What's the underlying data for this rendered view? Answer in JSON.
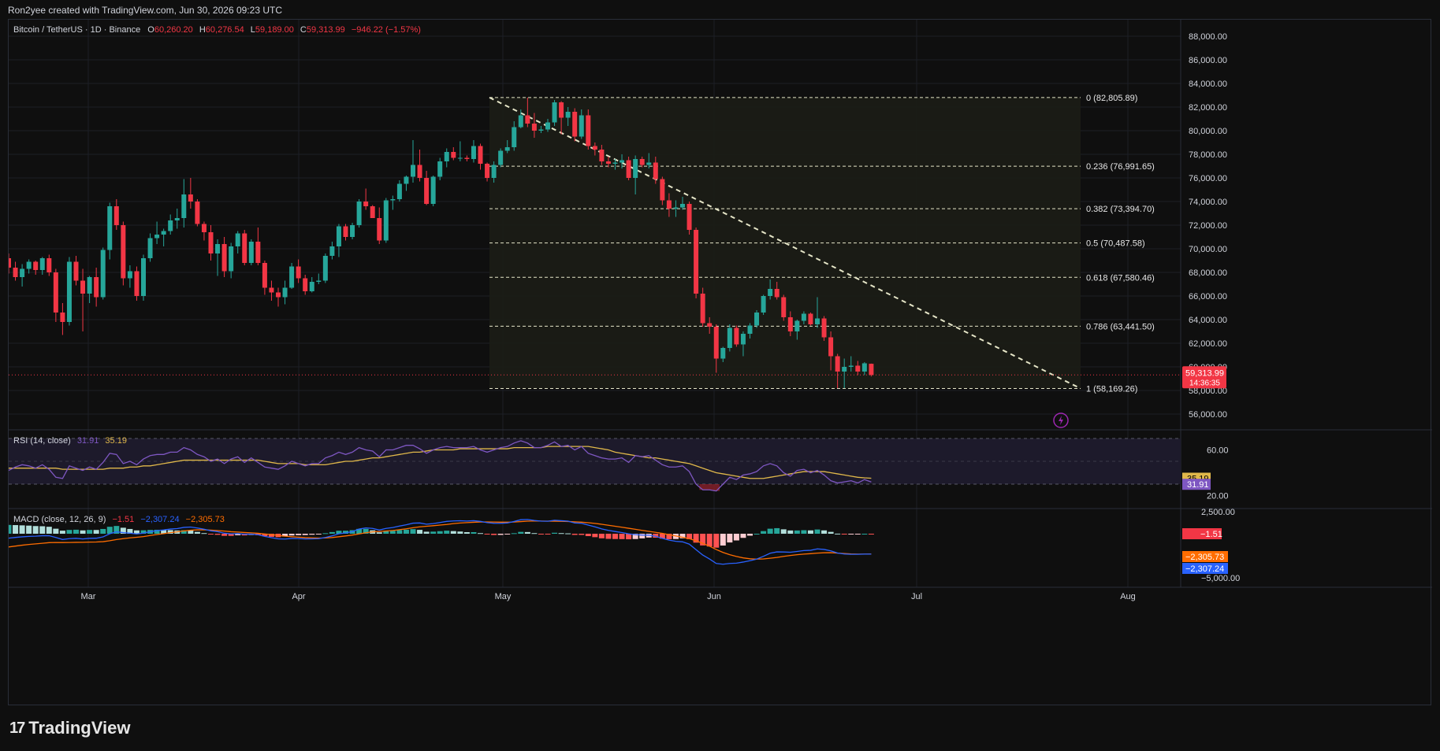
{
  "header": {
    "credit": "Ron2yee created with TradingView.com, Jun 30, 2026 09:23 UTC"
  },
  "legend": {
    "symbol": "Bitcoin / TetherUS · 1D · Binance",
    "o_label": "O",
    "o": "60,260.20",
    "h_label": "H",
    "h": "60,276.54",
    "l_label": "L",
    "l": "59,189.00",
    "c_label": "C",
    "c": "59,313.99",
    "change": "−946.22 (−1.57%)"
  },
  "price_axis": {
    "ticks": [
      "88,000.00",
      "86,000.00",
      "84,000.00",
      "82,000.00",
      "80,000.00",
      "78,000.00",
      "76,000.00",
      "74,000.00",
      "72,000.00",
      "70,000.00",
      "68,000.00",
      "66,000.00",
      "64,000.00",
      "62,000.00",
      "60,000.00",
      "58,000.00",
      "56,000.00"
    ],
    "last_price": "59,313.99",
    "countdown": "14:36:35"
  },
  "fib": {
    "levels": [
      {
        "label": "0 (82,805.89)",
        "price": 82805.89
      },
      {
        "label": "0.236 (76,991.65)",
        "price": 76991.65
      },
      {
        "label": "0.382 (73,394.70)",
        "price": 73394.7
      },
      {
        "label": "0.5 (70,487.58)",
        "price": 70487.58
      },
      {
        "label": "0.618 (67,580.46)",
        "price": 67580.46
      },
      {
        "label": "0.786 (63,441.50)",
        "price": 63441.5
      },
      {
        "label": "1 (58,169.26)",
        "price": 58169.26
      }
    ]
  },
  "rsi": {
    "title": "RSI (14, close)",
    "value": "31.91",
    "ma": "35.19",
    "ticks": [
      "60.00",
      "20.00"
    ],
    "badge_ma": "35.19",
    "badge_value": "31.91"
  },
  "macd": {
    "title": "MACD (close, 12, 26, 9)",
    "hist": "−1.51",
    "macd": "−2,307.24",
    "signal": "−2,305.73",
    "ticks": [
      "2,500.00",
      "−5,000.00"
    ],
    "badge_hist": "−1.51",
    "badge_signal": "−2,305.73",
    "badge_macd": "−2,307.24"
  },
  "time_axis": [
    "Mar",
    "Apr",
    "May",
    "Jun",
    "Jul",
    "Aug"
  ],
  "footer": {
    "brand": "TradingView"
  },
  "colors": {
    "up": "#26a69a",
    "down": "#f23645",
    "rsi": "#7e57c2",
    "rsi_ma": "#e0b84a",
    "macd": "#2962ff",
    "signal": "#ff6d00",
    "fib": "#e6e6c8"
  },
  "chart_data": {
    "type": "candlestick",
    "ylim": [
      55000,
      89000
    ],
    "candles": [
      [
        69200,
        69600,
        67900,
        68400
      ],
      [
        68400,
        68900,
        67300,
        67600
      ],
      [
        67600,
        68700,
        66800,
        68300
      ],
      [
        68300,
        69100,
        67900,
        68900
      ],
      [
        68900,
        69000,
        67800,
        68200
      ],
      [
        68200,
        69300,
        67800,
        69200
      ],
      [
        69200,
        69500,
        67700,
        68000
      ],
      [
        68000,
        68300,
        63800,
        64600
      ],
      [
        64600,
        65400,
        62700,
        63800
      ],
      [
        63800,
        69300,
        63500,
        68900
      ],
      [
        68900,
        69400,
        66900,
        67300
      ],
      [
        67300,
        68300,
        63000,
        66200
      ],
      [
        66200,
        67700,
        65400,
        67600
      ],
      [
        67600,
        68400,
        65100,
        65900
      ],
      [
        65900,
        70100,
        65700,
        69900
      ],
      [
        69900,
        73900,
        69100,
        73600
      ],
      [
        73600,
        74200,
        71600,
        72000
      ],
      [
        72000,
        72300,
        66900,
        67500
      ],
      [
        67500,
        68600,
        66700,
        68100
      ],
      [
        68100,
        68500,
        65600,
        66000
      ],
      [
        66000,
        69500,
        65600,
        69200
      ],
      [
        69200,
        71300,
        68900,
        70900
      ],
      [
        70900,
        72300,
        70400,
        71200
      ],
      [
        71200,
        71700,
        70200,
        71500
      ],
      [
        71500,
        72900,
        71200,
        72400
      ],
      [
        72400,
        73400,
        71700,
        72600
      ],
      [
        72600,
        75900,
        71800,
        74600
      ],
      [
        74600,
        76000,
        73400,
        74000
      ],
      [
        74000,
        74200,
        71900,
        72100
      ],
      [
        72100,
        72300,
        70700,
        71400
      ],
      [
        71400,
        72000,
        69000,
        69600
      ],
      [
        69600,
        70800,
        67700,
        70400
      ],
      [
        70400,
        71000,
        67600,
        68100
      ],
      [
        68100,
        70500,
        67500,
        70200
      ],
      [
        70200,
        71500,
        69600,
        71300
      ],
      [
        71300,
        71600,
        68600,
        68800
      ],
      [
        68800,
        70800,
        68600,
        70600
      ],
      [
        70600,
        71800,
        68600,
        68800
      ],
      [
        68800,
        69000,
        66100,
        66700
      ],
      [
        66700,
        67300,
        65600,
        66300
      ],
      [
        66300,
        66700,
        65100,
        65900
      ],
      [
        65900,
        67300,
        65300,
        66700
      ],
      [
        66700,
        68800,
        66600,
        68500
      ],
      [
        68500,
        69100,
        67100,
        67500
      ],
      [
        67500,
        67800,
        66100,
        66400
      ],
      [
        66400,
        67600,
        66300,
        67200
      ],
      [
        67200,
        67900,
        67000,
        67300
      ],
      [
        67300,
        69600,
        67100,
        69400
      ],
      [
        69400,
        70600,
        69100,
        70200
      ],
      [
        70200,
        72100,
        69300,
        71900
      ],
      [
        71900,
        72100,
        70700,
        71000
      ],
      [
        71000,
        72200,
        70800,
        72000
      ],
      [
        72000,
        74200,
        71800,
        74000
      ],
      [
        74000,
        75100,
        73300,
        73600
      ],
      [
        73600,
        73700,
        72600,
        72600
      ],
      [
        72600,
        73500,
        70400,
        70700
      ],
      [
        70700,
        74300,
        70500,
        74100
      ],
      [
        74100,
        74500,
        73300,
        74200
      ],
      [
        74200,
        75800,
        74000,
        75500
      ],
      [
        75500,
        76200,
        74900,
        76100
      ],
      [
        76100,
        79200,
        75600,
        77100
      ],
      [
        77100,
        78400,
        75700,
        76000
      ],
      [
        76000,
        76600,
        73700,
        73800
      ],
      [
        73800,
        76200,
        73600,
        76100
      ],
      [
        76100,
        77700,
        75800,
        77400
      ],
      [
        77400,
        78500,
        76900,
        78200
      ],
      [
        78200,
        78600,
        77500,
        77700
      ],
      [
        77700,
        79100,
        77400,
        77700
      ],
      [
        77700,
        77900,
        77400,
        77600
      ],
      [
        77600,
        79200,
        77300,
        78700
      ],
      [
        78700,
        78900,
        76700,
        77200
      ],
      [
        77200,
        77300,
        75700,
        76000
      ],
      [
        76000,
        77400,
        75600,
        77100
      ],
      [
        77100,
        78500,
        76900,
        78300
      ],
      [
        78300,
        79200,
        78100,
        78600
      ],
      [
        78600,
        80800,
        78300,
        80300
      ],
      [
        80300,
        81800,
        80200,
        81300
      ],
      [
        81300,
        82800,
        80300,
        80600
      ],
      [
        80600,
        81500,
        79400,
        80000
      ],
      [
        80000,
        80400,
        79800,
        80100
      ],
      [
        80100,
        81000,
        79900,
        80700
      ],
      [
        80700,
        82600,
        80400,
        82400
      ],
      [
        82400,
        82500,
        79700,
        81100
      ],
      [
        81100,
        82000,
        80400,
        81600
      ],
      [
        81600,
        81900,
        79100,
        79500
      ],
      [
        79500,
        81800,
        79300,
        81300
      ],
      [
        81300,
        81800,
        78400,
        78700
      ],
      [
        78700,
        79000,
        77900,
        78400
      ],
      [
        78400,
        78800,
        77100,
        77400
      ],
      [
        77400,
        77800,
        76900,
        77200
      ],
      [
        77200,
        77600,
        76700,
        77300
      ],
      [
        77300,
        78000,
        76800,
        77500
      ],
      [
        77500,
        77800,
        75800,
        76000
      ],
      [
        76000,
        77900,
        74600,
        77600
      ],
      [
        77600,
        77800,
        76900,
        77100
      ],
      [
        77100,
        78100,
        76800,
        77300
      ],
      [
        77300,
        77800,
        75500,
        75900
      ],
      [
        75900,
        76100,
        73700,
        74100
      ],
      [
        74100,
        74700,
        72700,
        73400
      ],
      [
        73400,
        74100,
        72700,
        73500
      ],
      [
        73500,
        74400,
        73300,
        73800
      ],
      [
        73800,
        74000,
        71200,
        71600
      ],
      [
        71600,
        71800,
        65800,
        66200
      ],
      [
        66200,
        66700,
        63400,
        63700
      ],
      [
        63700,
        64200,
        62800,
        63400
      ],
      [
        63400,
        63600,
        59500,
        60700
      ],
      [
        60700,
        61700,
        60400,
        61600
      ],
      [
        61600,
        63600,
        61300,
        63300
      ],
      [
        63300,
        63500,
        61700,
        61900
      ],
      [
        61900,
        63000,
        60900,
        62800
      ],
      [
        62800,
        63700,
        62400,
        63500
      ],
      [
        63500,
        64800,
        63300,
        64600
      ],
      [
        64600,
        66100,
        64400,
        66000
      ],
      [
        66000,
        67400,
        65700,
        66600
      ],
      [
        66600,
        67200,
        65700,
        65900
      ],
      [
        65900,
        66100,
        63900,
        64200
      ],
      [
        64200,
        64700,
        62600,
        63000
      ],
      [
        63000,
        64000,
        62300,
        63900
      ],
      [
        63900,
        64700,
        63600,
        64500
      ],
      [
        64500,
        64600,
        63500,
        63600
      ],
      [
        63600,
        65900,
        63300,
        64100
      ],
      [
        64100,
        64300,
        62200,
        62500
      ],
      [
        62500,
        63000,
        59700,
        60900
      ],
      [
        60900,
        61100,
        58200,
        59600
      ],
      [
        59600,
        60700,
        58200,
        60000
      ],
      [
        60000,
        60900,
        59600,
        60100
      ],
      [
        60100,
        60500,
        59300,
        59600
      ],
      [
        59600,
        60400,
        59300,
        60300
      ],
      [
        60260.2,
        60276.54,
        59189.0,
        59313.99
      ]
    ],
    "rsi_values": [
      42,
      45,
      47,
      46,
      44,
      47,
      43,
      36,
      35,
      46,
      44,
      42,
      45,
      43,
      49,
      57,
      56,
      48,
      50,
      47,
      52,
      55,
      56,
      56,
      58,
      58,
      62,
      60,
      56,
      54,
      50,
      52,
      48,
      52,
      54,
      49,
      53,
      49,
      45,
      44,
      43,
      46,
      50,
      48,
      46,
      48,
      48,
      53,
      55,
      58,
      56,
      58,
      62,
      60,
      59,
      54,
      60,
      60,
      62,
      64,
      64,
      61,
      57,
      60,
      62,
      63,
      62,
      62,
      62,
      63,
      60,
      58,
      60,
      62,
      63,
      66,
      68,
      66,
      62,
      62,
      64,
      67,
      63,
      64,
      60,
      63,
      57,
      55,
      53,
      52,
      52,
      53,
      49,
      55,
      54,
      55,
      51,
      47,
      45,
      45,
      46,
      41,
      30,
      25,
      25,
      24,
      30,
      36,
      34,
      38,
      39,
      41,
      46,
      48,
      46,
      40,
      37,
      42,
      43,
      40,
      42,
      38,
      33,
      31,
      32,
      33,
      31,
      34,
      31.91
    ],
    "rsi_ma_values": [
      44,
      44,
      44,
      44,
      44,
      44,
      44,
      44,
      43,
      43,
      43,
      43,
      43,
      43,
      43,
      44,
      44,
      44,
      45,
      45,
      46,
      46,
      47,
      48,
      49,
      50,
      51,
      51,
      51,
      51,
      51,
      51,
      51,
      51,
      51,
      51,
      51,
      51,
      50,
      49,
      48,
      48,
      48,
      48,
      47,
      47,
      47,
      47,
      48,
      49,
      50,
      50,
      51,
      52,
      53,
      53,
      54,
      55,
      56,
      57,
      58,
      58,
      59,
      60,
      60,
      60,
      60,
      61,
      61,
      61,
      61,
      61,
      61,
      61,
      61,
      62,
      62,
      62,
      62,
      62,
      63,
      63,
      63,
      63,
      63,
      63,
      63,
      62,
      61,
      60,
      58,
      57,
      56,
      55,
      54,
      53,
      53,
      52,
      51,
      50,
      49,
      48,
      46,
      44,
      42,
      40,
      39,
      38,
      37,
      36,
      35,
      35,
      35,
      36,
      37,
      38,
      39,
      40,
      41,
      41,
      41,
      41,
      40,
      39,
      38,
      37,
      36,
      35.5,
      35.19
    ],
    "macd_values": [
      -500,
      -420,
      -350,
      -300,
      -280,
      -230,
      -220,
      -420,
      -650,
      -560,
      -520,
      -590,
      -520,
      -510,
      -360,
      0,
      220,
      120,
      70,
      -20,
      70,
      230,
      360,
      430,
      530,
      580,
      720,
      760,
      650,
      510,
      330,
      240,
      60,
      -10,
      20,
      -50,
      -40,
      -110,
      -300,
      -450,
      -580,
      -600,
      -540,
      -550,
      -590,
      -580,
      -560,
      -420,
      -240,
      0,
      90,
      250,
      530,
      660,
      600,
      420,
      600,
      700,
      870,
      1020,
      1200,
      1220,
      1080,
      1150,
      1270,
      1400,
      1450,
      1470,
      1440,
      1480,
      1400,
      1260,
      1190,
      1180,
      1220,
      1390,
      1590,
      1620,
      1510,
      1430,
      1420,
      1530,
      1480,
      1430,
      1220,
      1180,
      980,
      780,
      550,
      380,
      250,
      130,
      -10,
      -100,
      -150,
      -160,
      -290,
      -520,
      -730,
      -860,
      -920,
      -1180,
      -1810,
      -2420,
      -2860,
      -3370,
      -3460,
      -3370,
      -3340,
      -3210,
      -3060,
      -2880,
      -2560,
      -2210,
      -2060,
      -2070,
      -2100,
      -2010,
      -1910,
      -1880,
      -1720,
      -1780,
      -1940,
      -2190,
      -2300,
      -2330,
      -2330,
      -2310,
      -2307.24
    ],
    "signal_values": [
      -1500,
      -1400,
      -1300,
      -1220,
      -1150,
      -1080,
      -1010,
      -990,
      -1000,
      -990,
      -975,
      -970,
      -950,
      -935,
      -900,
      -790,
      -660,
      -560,
      -470,
      -400,
      -320,
      -200,
      -90,
      10,
      120,
      210,
      320,
      400,
      440,
      440,
      410,
      360,
      300,
      230,
      190,
      140,
      100,
      50,
      -20,
      -100,
      -190,
      -280,
      -340,
      -390,
      -440,
      -470,
      -490,
      -480,
      -430,
      -340,
      -250,
      -150,
      -20,
      110,
      210,
      260,
      310,
      370,
      460,
      560,
      680,
      780,
      850,
      910,
      980,
      1050,
      1150,
      1220,
      1260,
      1300,
      1330,
      1340,
      1330,
      1310,
      1310,
      1330,
      1380,
      1430,
      1440,
      1440,
      1430,
      1420,
      1410,
      1390,
      1350,
      1310,
      1250,
      1170,
      1070,
      960,
      850,
      740,
      620,
      500,
      380,
      270,
      160,
      40,
      -110,
      -260,
      -400,
      -560,
      -800,
      -1090,
      -1410,
      -1790,
      -2120,
      -2380,
      -2580,
      -2740,
      -2840,
      -2880,
      -2860,
      -2780,
      -2690,
      -2570,
      -2470,
      -2380,
      -2310,
      -2260,
      -2200,
      -2160,
      -2150,
      -2200,
      -2250,
      -2290,
      -2310,
      -2310,
      -2305.73
    ]
  }
}
